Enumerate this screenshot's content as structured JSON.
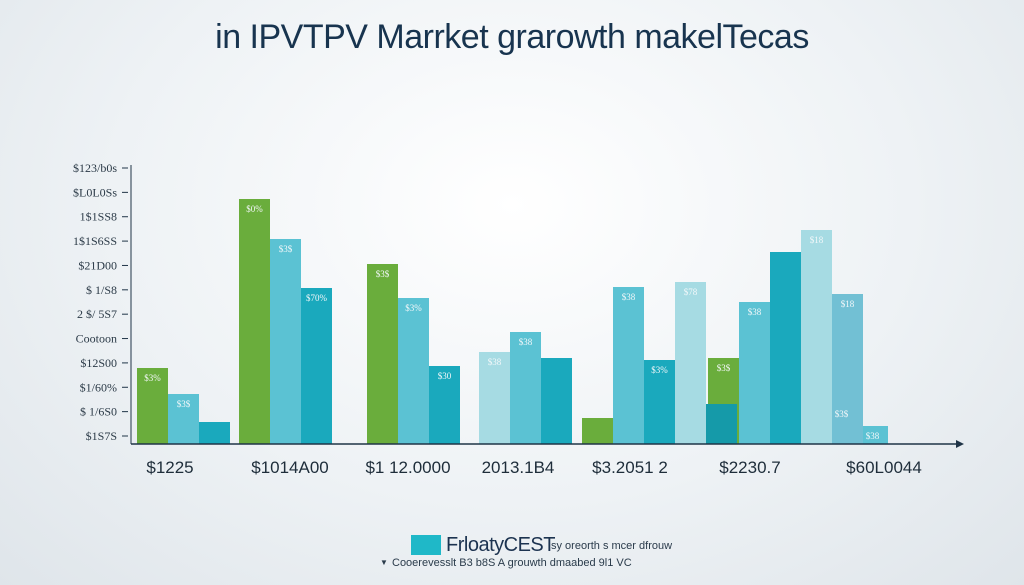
{
  "chart_data": {
    "type": "bar",
    "title": "in IPVTPV Marrket grarowth makelTecas",
    "categories": [
      "$1225",
      "$1014A00",
      "$1 12.0000",
      "2013.1B4",
      "$3.2051 2",
      "$2230.7",
      "$60L0044"
    ],
    "yticks": [
      "$123/b0s",
      "$L0L0Ss",
      "1$1SS8",
      "1$1S6SS",
      "$21D00",
      "$ 1/S8",
      "2 $/ 5S7",
      "Cootoon",
      "$12S00",
      "$1/60%",
      "$ 1/6S0",
      "$1S7S"
    ],
    "series": [
      {
        "color": "#6aad3c",
        "values": [
          76,
          245,
          180,
          null,
          26,
          86,
          40
        ],
        "labels": [
          "$3%",
          "$0%",
          "$3$",
          "",
          "",
          "$3$",
          "$3$"
        ]
      },
      {
        "color": "#5bc2d3",
        "values": [
          50,
          205,
          146,
          112,
          157,
          142,
          18
        ],
        "labels": [
          "$3$",
          "$3$",
          "$3%",
          "$38",
          "$38",
          "$38",
          "$38"
        ]
      },
      {
        "color": "#1aa9bd",
        "values": [
          22,
          156,
          78,
          86,
          84,
          192,
          null
        ],
        "labels": [
          "",
          "$70%",
          "$30",
          "",
          "$3%",
          "",
          ""
        ]
      },
      {
        "color": "#a6dbe3",
        "values": [
          null,
          null,
          null,
          92,
          162,
          214,
          null
        ],
        "labels": [
          "",
          "",
          "",
          "$38",
          "$78",
          "$18",
          ""
        ]
      },
      {
        "color": "#72c0d4",
        "values": [
          null,
          null,
          null,
          null,
          null,
          150,
          null
        ],
        "labels": [
          "",
          "",
          "",
          "",
          "",
          "$18",
          ""
        ]
      },
      {
        "color": "#159aa9",
        "values": [
          null,
          null,
          null,
          null,
          40,
          null,
          null
        ],
        "labels": [
          "",
          "",
          "",
          "",
          "",
          "",
          ""
        ]
      }
    ],
    "legend": {
      "label": "FrloatyCEST",
      "sublabel": "sy oreorth s mcer dfrouw",
      "note": "Cooerevesslt B3 b8S A grouwth dmaabed 9l1 VC"
    },
    "colors": {
      "title": "#18344f",
      "axis": "#1f3447",
      "legend_swatch": "#1fb8c8"
    }
  }
}
